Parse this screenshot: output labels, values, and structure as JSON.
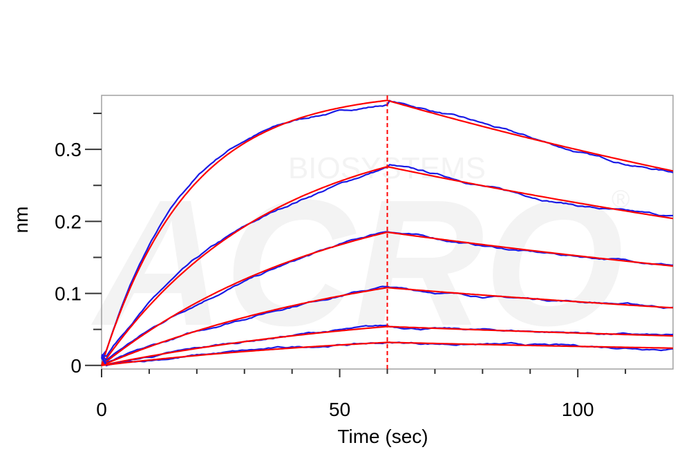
{
  "chart_data": {
    "type": "line",
    "xlabel": "Time (sec)",
    "ylabel": "nm",
    "xlim": [
      0,
      120
    ],
    "ylim": [
      -0.005,
      0.375
    ],
    "x_ticks": [
      0,
      50,
      100
    ],
    "x_minor_ticks": [
      10,
      20,
      30,
      40,
      60,
      70,
      80,
      90,
      110
    ],
    "y_ticks": [
      0,
      0.1,
      0.2,
      0.3
    ],
    "y_tick_labels": [
      "0",
      "0.1",
      "0.2",
      "0.3"
    ],
    "y_minor_ticks": [
      0.05,
      0.15,
      0.25,
      0.35
    ],
    "grid": false,
    "legend": "none",
    "association_end": 60,
    "marker_line": {
      "x": 60,
      "color": "#ff0000",
      "style": "dashed"
    },
    "measured_color": "#1a1ae6",
    "fit_color": "#ff0000",
    "series": [
      {
        "peak": 0.368,
        "end": 0.27,
        "kobs": 0.055
      },
      {
        "peak": 0.276,
        "end": 0.204,
        "kobs": 0.028
      },
      {
        "peak": 0.185,
        "end": 0.138,
        "kobs": 0.02
      },
      {
        "peak": 0.108,
        "end": 0.08,
        "kobs": 0.016
      },
      {
        "peak": 0.054,
        "end": 0.041,
        "kobs": 0.015
      },
      {
        "peak": 0.032,
        "end": 0.024,
        "kobs": 0.014
      }
    ],
    "watermark": {
      "text": "ACRO",
      "subtext": "BIOSYSTEMS",
      "mark": "®"
    }
  }
}
